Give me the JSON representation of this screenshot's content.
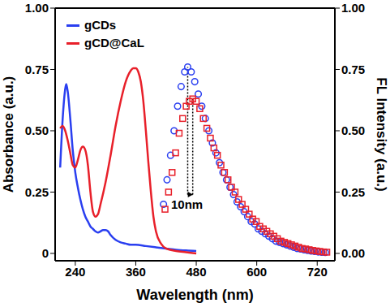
{
  "chart_data": {
    "type": "line",
    "x_label": "Wavelength (nm)",
    "y_label": "Absorbance (a.u.)",
    "y2_label": "FL Intensity (a.u.)",
    "xlim": [
      200,
      755
    ],
    "xticks": [
      240,
      360,
      480,
      600,
      720
    ],
    "ylim": [
      -0.03,
      1.0
    ],
    "yticks": [
      0,
      0.25,
      {
        "value": 0.5,
        "label": "0.50"
      },
      0.75,
      {
        "value": 1,
        "label": "1.00"
      }
    ],
    "y2lim": [
      -0.03,
      1.0
    ],
    "y2ticks": [
      {
        "value": 0,
        "label": "0.00"
      },
      0.25,
      {
        "value": 0.5,
        "label": "0.50"
      },
      0.75,
      {
        "value": 1,
        "label": "1.00"
      }
    ],
    "legend": "top-left",
    "grid": false,
    "annotations": [
      {
        "text": "10nm",
        "x": [
          463,
          473
        ],
        "y": 0.24,
        "axis": "y2"
      }
    ],
    "series": [
      {
        "name": "gCDs",
        "type": "line",
        "line_style": "solid",
        "color": "#2a3ff0",
        "x": [
          210,
          215,
          220,
          222,
          225,
          230,
          235,
          240,
          245,
          250,
          255,
          260,
          265,
          270,
          275,
          280,
          285,
          290,
          295,
          300,
          305,
          310,
          320,
          330,
          340,
          350,
          360,
          380,
          400,
          420,
          440,
          460,
          480
        ],
        "values": [
          0.35,
          0.55,
          0.67,
          0.69,
          0.66,
          0.55,
          0.42,
          0.33,
          0.27,
          0.22,
          0.18,
          0.15,
          0.13,
          0.11,
          0.1,
          0.09,
          0.085,
          0.09,
          0.095,
          0.095,
          0.09,
          0.075,
          0.055,
          0.045,
          0.04,
          0.035,
          0.035,
          0.03,
          0.025,
          0.02,
          0.015,
          0.012,
          0.01
        ]
      },
      {
        "name": "gCD@CaL",
        "type": "line",
        "line_style": "solid",
        "color": "#e8202a",
        "x": [
          210,
          215,
          220,
          225,
          230,
          235,
          240,
          245,
          250,
          255,
          260,
          265,
          270,
          275,
          280,
          285,
          290,
          300,
          310,
          320,
          330,
          340,
          350,
          355,
          360,
          365,
          370,
          375,
          380,
          385,
          390,
          395,
          400,
          410,
          420,
          440,
          460,
          480
        ],
        "values": [
          0.51,
          0.52,
          0.5,
          0.46,
          0.41,
          0.36,
          0.35,
          0.38,
          0.42,
          0.435,
          0.42,
          0.36,
          0.25,
          0.17,
          0.15,
          0.16,
          0.2,
          0.29,
          0.4,
          0.52,
          0.62,
          0.7,
          0.745,
          0.755,
          0.755,
          0.74,
          0.7,
          0.62,
          0.5,
          0.37,
          0.25,
          0.15,
          0.09,
          0.04,
          0.02,
          0.01,
          0.005,
          0.0
        ]
      },
      {
        "name": "gCDs",
        "type": "scatter",
        "marker": "o",
        "color": "#2a3ff0",
        "axis": "y2",
        "x": [
          415,
          422,
          429,
          436,
          443,
          450,
          457,
          463,
          470,
          477,
          484,
          491,
          498,
          505,
          512,
          519,
          526,
          533,
          540,
          547,
          554,
          561,
          568,
          575,
          582,
          589,
          596,
          603,
          610,
          617,
          624,
          631,
          638,
          645,
          652,
          659,
          666,
          673,
          680,
          687,
          694,
          701,
          708,
          715,
          722,
          729,
          736
        ],
        "values": [
          0.2,
          0.3,
          0.4,
          0.5,
          0.6,
          0.68,
          0.74,
          0.76,
          0.74,
          0.7,
          0.65,
          0.6,
          0.55,
          0.5,
          0.45,
          0.41,
          0.37,
          0.33,
          0.3,
          0.27,
          0.24,
          0.21,
          0.19,
          0.17,
          0.15,
          0.13,
          0.12,
          0.1,
          0.09,
          0.08,
          0.07,
          0.06,
          0.05,
          0.045,
          0.04,
          0.035,
          0.03,
          0.025,
          0.02,
          0.018,
          0.015,
          0.012,
          0.01,
          0.008,
          0.006,
          0.005,
          0.004
        ]
      },
      {
        "name": "gCD@CaL",
        "type": "scatter",
        "marker": "s",
        "color": "#e8202a",
        "axis": "y2",
        "x": [
          418,
          425,
          432,
          439,
          446,
          453,
          460,
          466,
          473,
          480,
          487,
          494,
          501,
          508,
          515,
          522,
          529,
          536,
          543,
          550,
          557,
          564,
          571,
          578,
          585,
          592,
          599,
          606,
          613,
          620,
          627,
          634,
          641,
          648,
          655,
          662,
          669,
          676,
          683,
          690,
          697,
          704,
          711,
          718,
          725,
          732,
          739
        ],
        "values": [
          0.18,
          0.25,
          0.33,
          0.41,
          0.49,
          0.55,
          0.6,
          0.62,
          0.63,
          0.62,
          0.59,
          0.55,
          0.51,
          0.47,
          0.43,
          0.4,
          0.36,
          0.33,
          0.3,
          0.27,
          0.25,
          0.22,
          0.2,
          0.18,
          0.16,
          0.14,
          0.13,
          0.11,
          0.1,
          0.09,
          0.08,
          0.07,
          0.06,
          0.05,
          0.045,
          0.04,
          0.035,
          0.03,
          0.025,
          0.02,
          0.018,
          0.015,
          0.012,
          0.01,
          0.008,
          0.006,
          0.005
        ]
      }
    ]
  }
}
